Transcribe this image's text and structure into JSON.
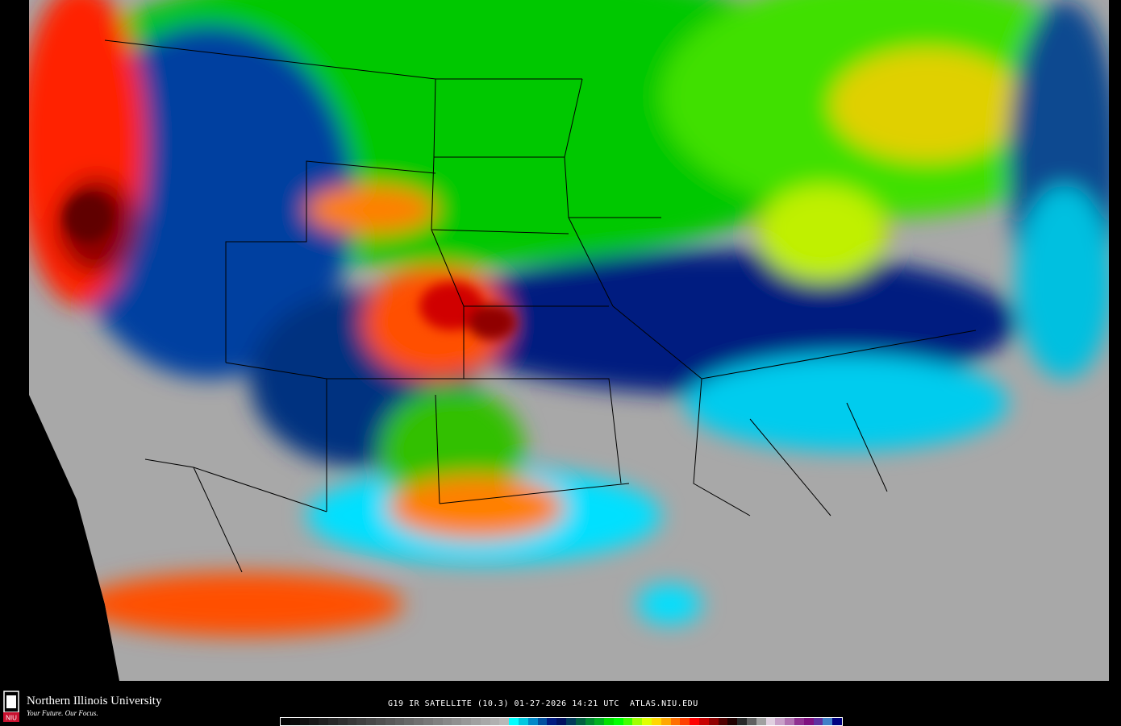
{
  "footer": {
    "university": "Northern Illinois University",
    "tagline": "Your Future. Our Focus.",
    "logo_text": "NIU",
    "caption": "G19 IR SATELLITE (10.3) 01-27-2026 14:21 UTC  ATLAS.NIU.EDU"
  },
  "map": {
    "product": "IR satellite brightness temperature",
    "region": "Contiguous United States"
  },
  "colorbar": {
    "colors": [
      "#050505",
      "#0a0a0a",
      "#111",
      "#181818",
      "#202020",
      "#282828",
      "#303030",
      "#383838",
      "#404040",
      "#484848",
      "#505050",
      "#585858",
      "#606060",
      "#686868",
      "#707070",
      "#787878",
      "#808080",
      "#888888",
      "#909090",
      "#989898",
      "#a0a0a0",
      "#a8a8a8",
      "#b0b0b0",
      "#b8b8b8",
      "#00ffff",
      "#00c8e0",
      "#0088c8",
      "#0050a0",
      "#001a80",
      "#001060",
      "#003a5a",
      "#006040",
      "#008a30",
      "#00b020",
      "#00e000",
      "#00ff00",
      "#40ff00",
      "#a0ff00",
      "#e0ff00",
      "#ffd800",
      "#ffa800",
      "#ff7000",
      "#ff4000",
      "#ff0000",
      "#c80000",
      "#900000",
      "#500000",
      "#200000",
      "#282828",
      "#606060",
      "#a0a0a0",
      "#e0d0e0",
      "#c8a0c8",
      "#b070b0",
      "#903090",
      "#801080",
      "#6030a0",
      "#4080c8",
      "#000080"
    ]
  }
}
